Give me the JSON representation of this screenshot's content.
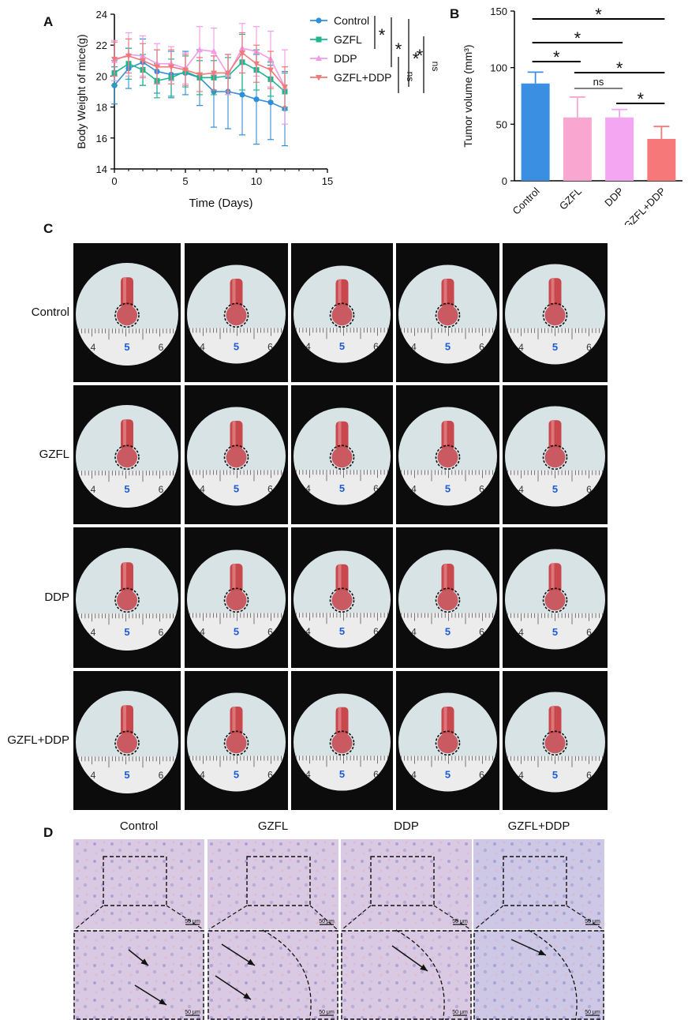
{
  "panels": {
    "A": "A",
    "B": "B",
    "C": "C",
    "D": "D"
  },
  "chart_data": [
    {
      "type": "line",
      "panel": "A",
      "xlabel": "Time (Days)",
      "ylabel": "Body Weight of mice(g)",
      "xlim": [
        0,
        15
      ],
      "ylim": [
        14,
        24
      ],
      "xticks": [
        0,
        5,
        10,
        15
      ],
      "yticks": [
        14,
        16,
        18,
        20,
        22,
        24
      ],
      "legend_position": "right",
      "x": [
        0,
        1,
        2,
        3,
        4,
        5,
        6,
        7,
        8,
        9,
        10,
        11,
        12
      ],
      "series": [
        {
          "name": "Control",
          "color": "#2f8fd8",
          "marker": "circle",
          "values": [
            19.4,
            20.5,
            20.9,
            20.3,
            20.1,
            20.2,
            19.9,
            19.0,
            19.0,
            18.8,
            18.5,
            18.3,
            17.9
          ],
          "errors": [
            1.2,
            1.3,
            1.5,
            1.4,
            1.5,
            1.4,
            1.8,
            2.3,
            2.4,
            2.6,
            2.9,
            2.4,
            2.4
          ]
        },
        {
          "name": "GZFL",
          "color": "#1fb58f",
          "marker": "square",
          "values": [
            20.2,
            20.8,
            20.4,
            19.7,
            19.9,
            20.3,
            19.9,
            19.9,
            20.0,
            20.9,
            20.4,
            19.8,
            19.0
          ],
          "errors": [
            0.8,
            1.0,
            1.0,
            1.1,
            1.2,
            1.0,
            1.1,
            1.1,
            1.2,
            1.8,
            1.3,
            1.1,
            1.2
          ]
        },
        {
          "name": "DDP",
          "color": "#f29be8",
          "marker": "triangle",
          "values": [
            21.0,
            21.4,
            21.3,
            20.8,
            20.8,
            20.5,
            21.7,
            21.6,
            20.1,
            21.8,
            21.6,
            21.1,
            19.3
          ],
          "errors": [
            1.3,
            1.4,
            1.3,
            1.3,
            1.1,
            1.0,
            1.5,
            1.5,
            1.3,
            1.6,
            1.6,
            1.8,
            2.4
          ]
        },
        {
          "name": "GZFL+DDP",
          "color": "#f07a7a",
          "marker": "triangle-down",
          "values": [
            21.1,
            21.3,
            21.0,
            20.6,
            20.6,
            20.4,
            20.1,
            20.2,
            20.2,
            21.5,
            20.8,
            20.4,
            19.3
          ],
          "errors": [
            1.1,
            1.1,
            1.1,
            1.1,
            1.1,
            1.0,
            1.1,
            1.1,
            1.2,
            1.3,
            1.2,
            1.2,
            1.3
          ]
        }
      ],
      "annotations": [
        "*",
        "*",
        "*",
        "ns",
        "ns"
      ]
    },
    {
      "type": "bar",
      "panel": "B",
      "ylabel": "Tumor volume (mm³)",
      "ylim": [
        0,
        150
      ],
      "yticks": [
        0,
        50,
        100,
        150
      ],
      "categories": [
        "Control",
        "GZFL",
        "DDP",
        "GZFL+DDP"
      ],
      "values": [
        86,
        56,
        56,
        37
      ],
      "errors": [
        10,
        18,
        7,
        11
      ],
      "colors": [
        "#3a8fe3",
        "#f9a7d0",
        "#f4a6f2",
        "#f67878"
      ],
      "significance": [
        {
          "from": 0,
          "to": 1,
          "label": "*"
        },
        {
          "from": 0,
          "to": 2,
          "label": "*"
        },
        {
          "from": 0,
          "to": 3,
          "label": "*"
        },
        {
          "from": 1,
          "to": 2,
          "label": "ns"
        },
        {
          "from": 1,
          "to": 3,
          "label": "*"
        },
        {
          "from": 2,
          "to": 3,
          "label": "*"
        }
      ]
    }
  ],
  "photo_grid": {
    "rows": [
      "Control",
      "GZFL",
      "DDP",
      "GZFL+DDP"
    ],
    "ruler_labels": [
      "4",
      "5",
      "6"
    ]
  },
  "histology": {
    "columns": [
      "Control",
      "GZFL",
      "DDP",
      "GZFL+DDP"
    ],
    "scale_bar": "50 μm"
  }
}
